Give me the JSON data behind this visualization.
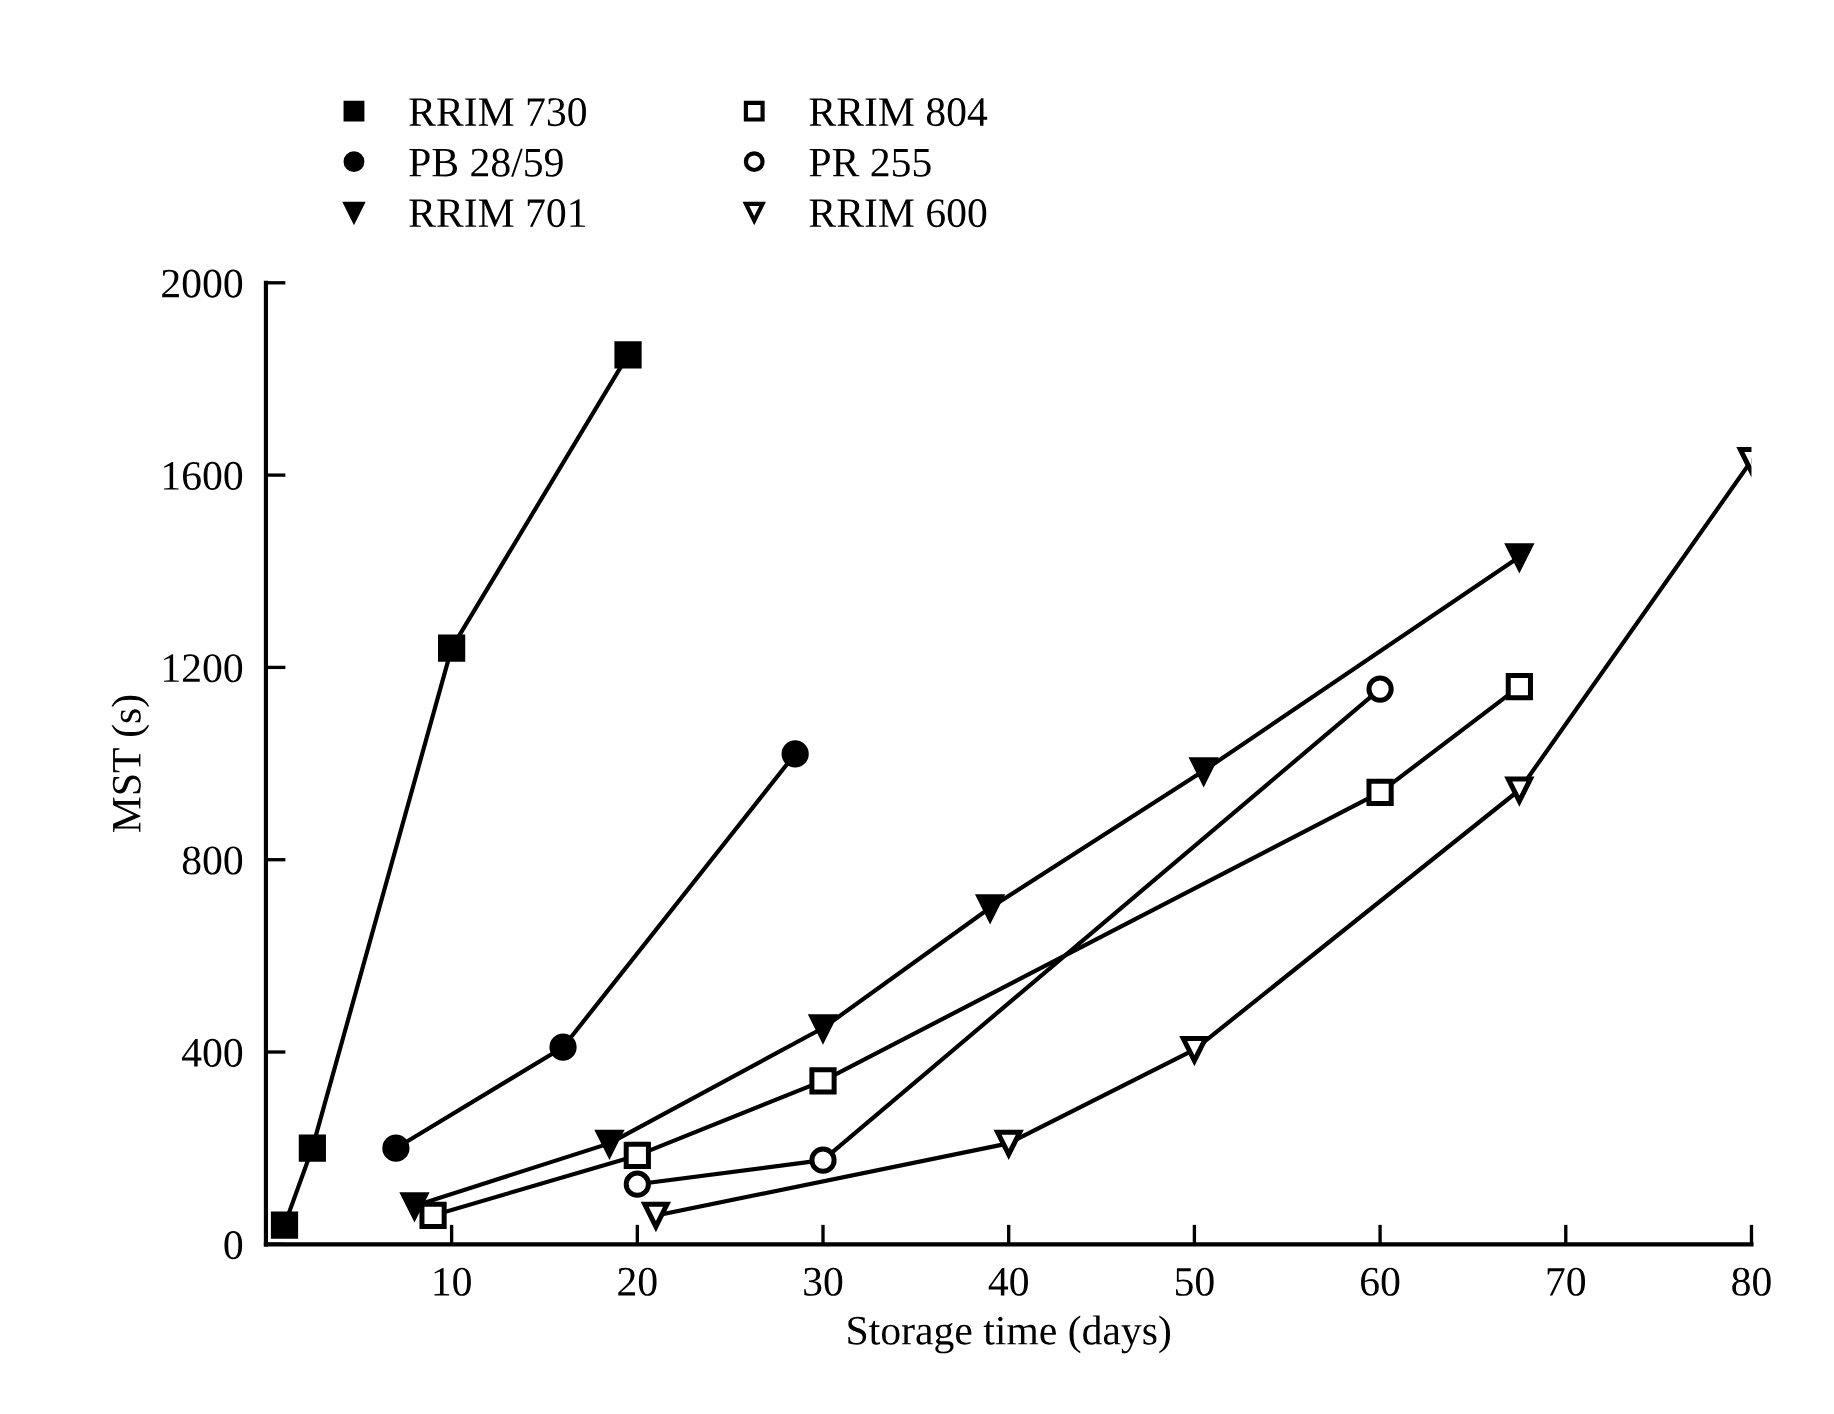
{
  "chart_data": {
    "type": "line",
    "xlabel": "Storage time (days)",
    "ylabel": "MST (s)",
    "xlim": [
      0,
      80
    ],
    "xticks": [
      10,
      20,
      30,
      40,
      50,
      60,
      70,
      80
    ],
    "ylim": [
      0,
      2000
    ],
    "yticks": [
      0,
      400,
      800,
      1200,
      1600,
      2000
    ],
    "grid": false,
    "legend": "top",
    "line_style": "solid",
    "series": [
      {
        "name": "RRIM 730",
        "color": "#000000",
        "marker": "square",
        "x": [
          1,
          2.5,
          10,
          19.5
        ],
        "values": [
          40,
          200,
          1240,
          1850
        ]
      },
      {
        "name": "PB 28/59",
        "color": "#000000",
        "marker": "circle",
        "x": [
          7,
          16,
          28.5
        ],
        "values": [
          200,
          410,
          1020
        ]
      },
      {
        "name": "RRIM 701",
        "color": "#000000",
        "marker": "triangle",
        "x": [
          8,
          18.5,
          30,
          39,
          50.5,
          67.5
        ],
        "values": [
          80,
          210,
          450,
          700,
          985,
          1430
        ]
      },
      {
        "name": "RRIM 804",
        "color": "#000000",
        "marker": "square",
        "colors": [
          "#ffffff",
          "#ffffff",
          "#ffffff",
          "#ffffff",
          "#ffffff"
        ],
        "x": [
          9,
          20,
          30,
          60,
          67.5
        ],
        "values": [
          60,
          185,
          340,
          940,
          1160
        ]
      },
      {
        "name": "PR 255",
        "color": "#000000",
        "marker": "circle",
        "colors": [
          "#ffffff",
          "#ffffff",
          "#ffffff"
        ],
        "x": [
          20,
          30,
          60
        ],
        "values": [
          125,
          175,
          1155
        ]
      },
      {
        "name": "RRIM 600",
        "color": "#000000",
        "marker": "triangle",
        "colors": [
          "#ffffff",
          "#ffffff",
          "#ffffff",
          "#ffffff",
          "#ffffff"
        ],
        "x": [
          21,
          40,
          50,
          67.5,
          80
        ],
        "values": [
          60,
          210,
          405,
          945,
          1630
        ]
      }
    ]
  }
}
